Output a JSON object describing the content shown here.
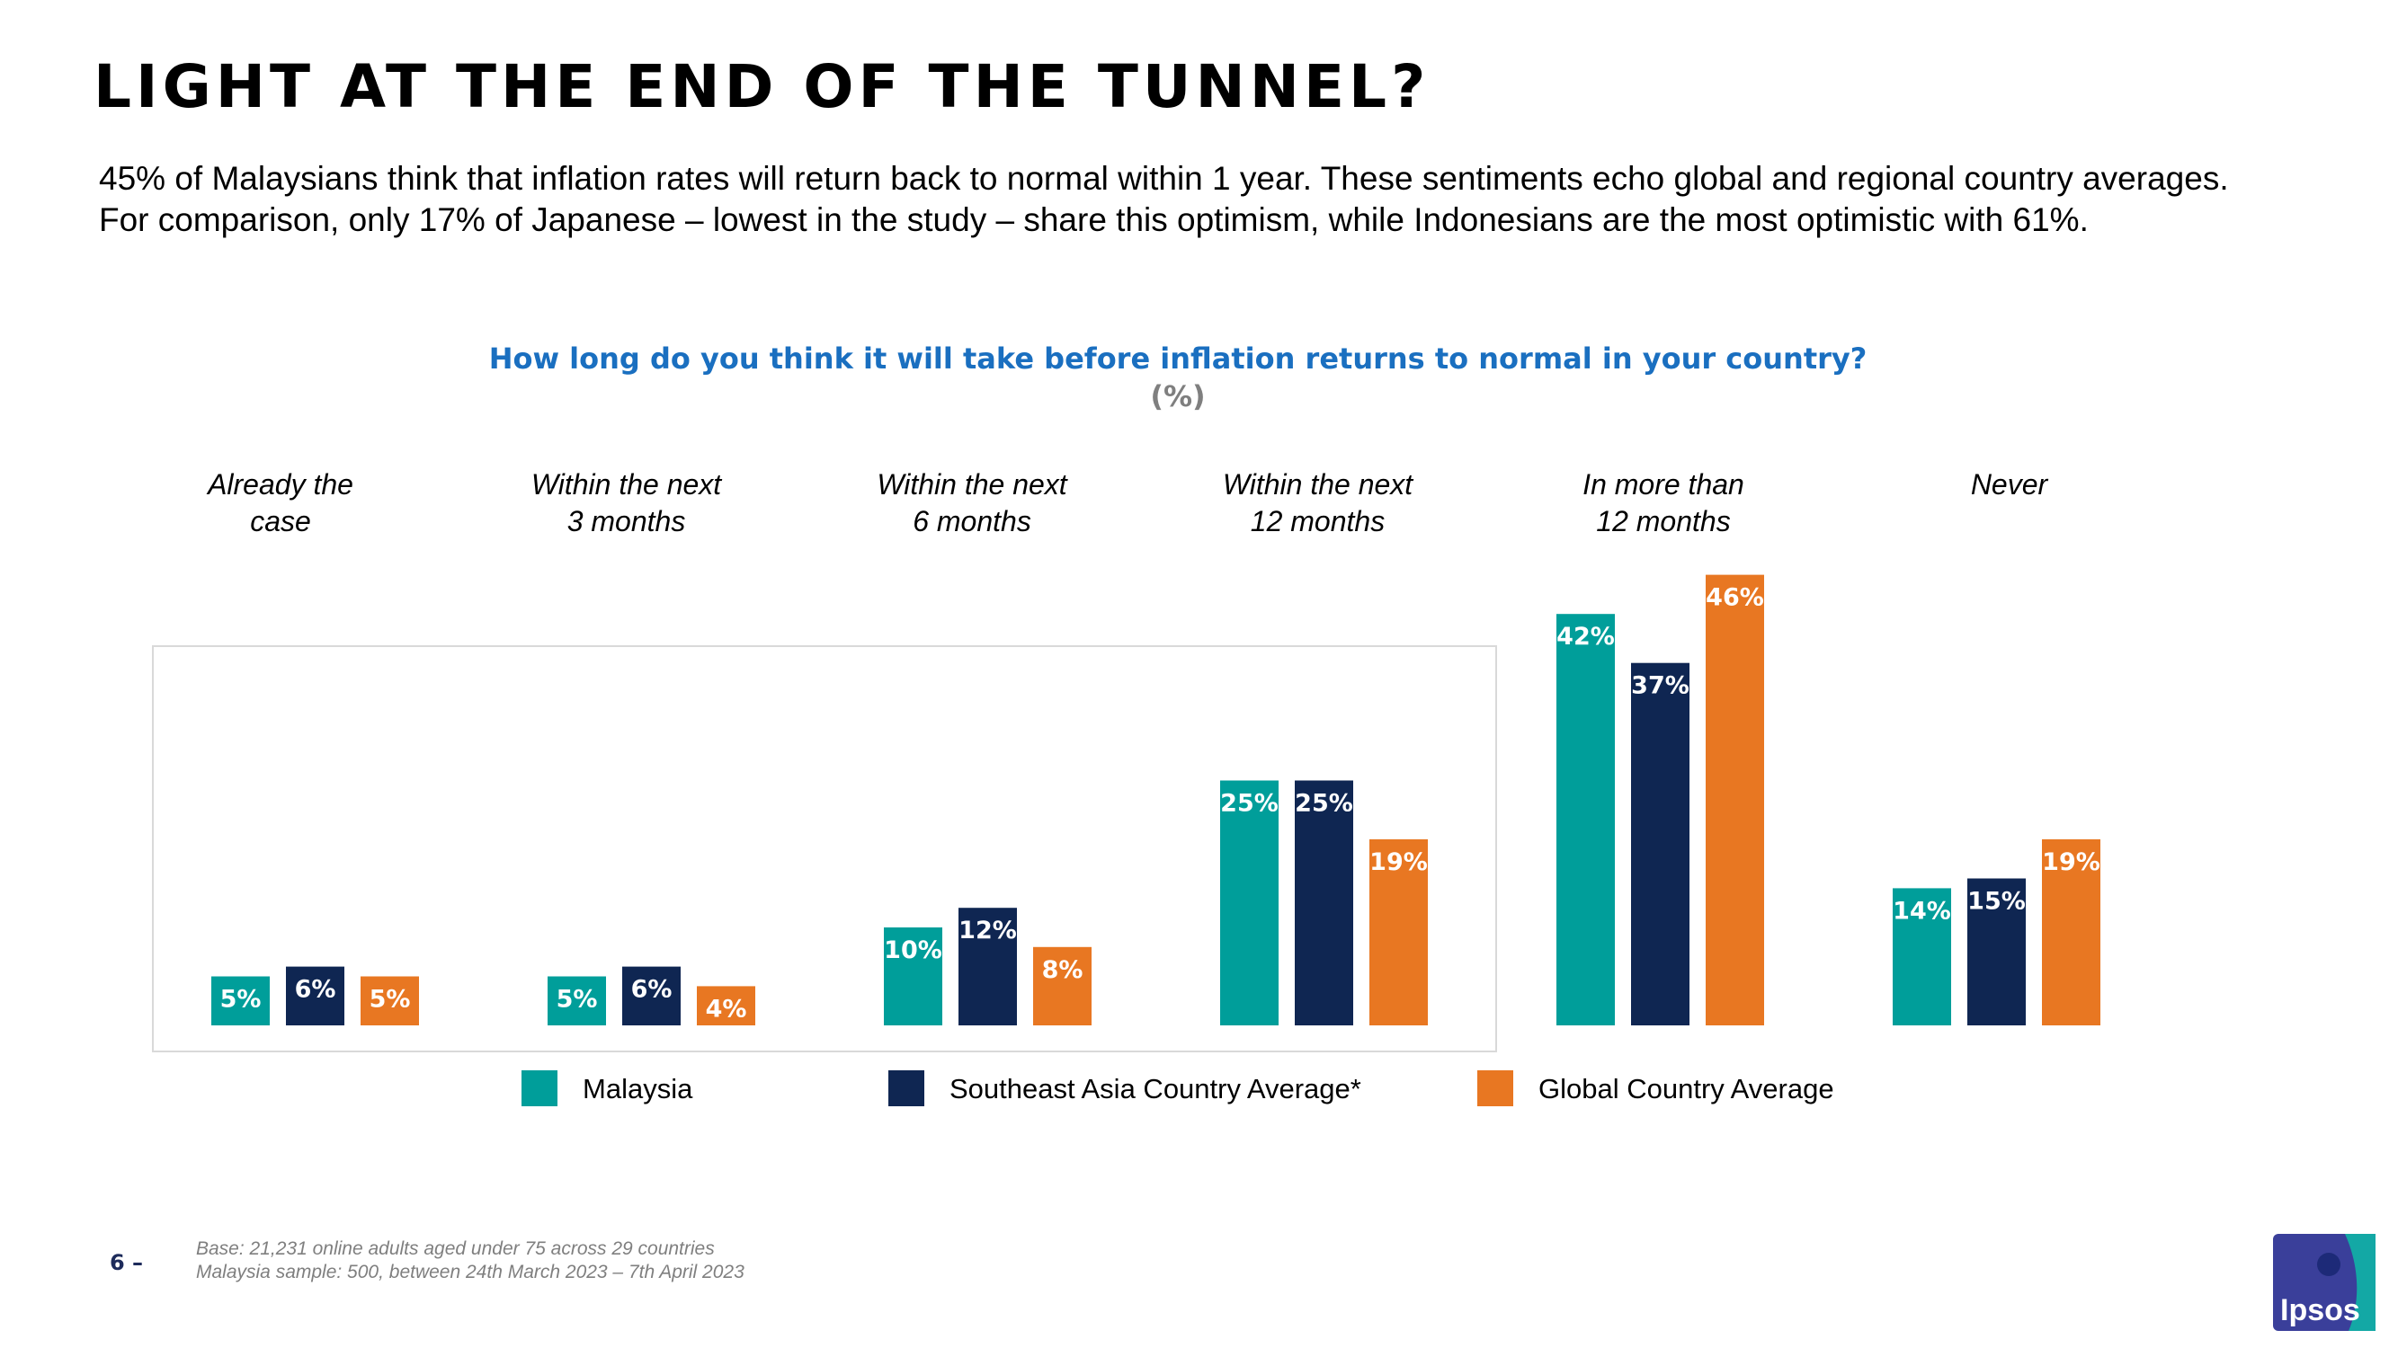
{
  "page": {
    "title": "LIGHT AT THE END OF THE TUNNEL?",
    "subtitle_line1": "45% of Malaysians think that inflation rates will return back to normal within 1 year.  These sentiments echo global and regional country averages.",
    "subtitle_line2": "For comparison, only 17% of Japanese – lowest in the study – share this optimism, while Indonesians are the most optimistic with 61%.",
    "page_number": "6 –",
    "footnote_line1": "Base: 21,231 online adults aged under 75 across 29 countries",
    "footnote_line2": "Malaysia sample: 500, between 24th March 2023 – 7th April 2023",
    "logo_text": "Ipsos"
  },
  "colors": {
    "malaysia": "#009e9a",
    "sea": "#0f2652",
    "global": "#e87722",
    "question": "#1a6fc0",
    "logo_bg": "#3a3f9a",
    "logo_accent": "#13a8a5"
  },
  "chart_data": {
    "type": "bar",
    "title": "How long do you think it will take before inflation returns to normal in your country?",
    "unit": "(%)",
    "categories": [
      [
        "Already the",
        "case"
      ],
      [
        "Within the next",
        "3 months"
      ],
      [
        "Within the next",
        "6 months"
      ],
      [
        "Within the next",
        "12 months"
      ],
      [
        "In more than",
        "12 months"
      ],
      [
        "Never"
      ]
    ],
    "series": [
      {
        "name": "Malaysia",
        "values": [
          5,
          5,
          10,
          25,
          42,
          14
        ],
        "labels": [
          "5%",
          "5%",
          "10%",
          "25%",
          "42%",
          "14%"
        ]
      },
      {
        "name": "Southeast Asia Country Average*",
        "values": [
          6,
          6,
          12,
          25,
          37,
          15
        ],
        "labels": [
          "6%",
          "6%",
          "12%",
          "25%",
          "37%",
          "15%"
        ]
      },
      {
        "name": "Global Country Average",
        "values": [
          5,
          4,
          8,
          19,
          46,
          19
        ],
        "labels": [
          "5%",
          "4%",
          "8%",
          "19%",
          "46%",
          "19%"
        ]
      }
    ],
    "ylim": [
      0,
      50
    ],
    "xlabel": "",
    "ylabel": ""
  }
}
